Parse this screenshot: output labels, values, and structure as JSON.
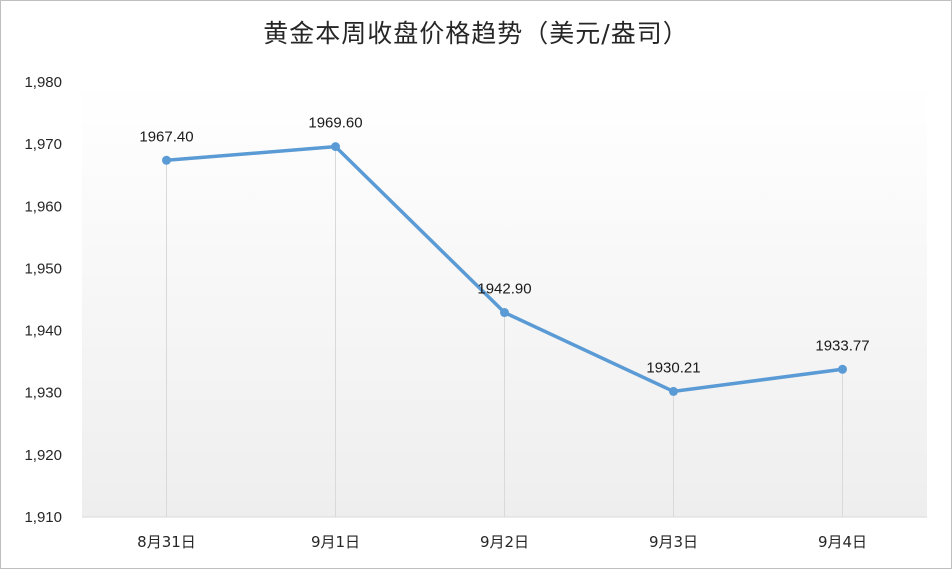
{
  "chart_data": {
    "type": "line",
    "title": "黄金本周收盘价格趋势（美元/盎司）",
    "categories": [
      "8月31日",
      "9月1日",
      "9月2日",
      "9月3日",
      "9月4日"
    ],
    "series": [
      {
        "values": [
          1967.4,
          1969.6,
          1942.9,
          1930.21,
          1933.77
        ]
      }
    ],
    "data_labels": [
      "1967.40",
      "1969.60",
      "1942.90",
      "1930.21",
      "1933.77"
    ],
    "y_ticks": [
      "1,910",
      "1,920",
      "1,930",
      "1,940",
      "1,950",
      "1,960",
      "1,970",
      "1,980"
    ],
    "ylim": [
      1910,
      1980
    ],
    "grid": false,
    "drop_lines": true,
    "legend": "none",
    "colors": {
      "line": "#5b9bd5",
      "drop_line": "#d9d9d9",
      "axis": "#d9d9d9",
      "plot_gradient_top": "#ffffff",
      "plot_gradient_bottom": "#eeeeee"
    }
  }
}
